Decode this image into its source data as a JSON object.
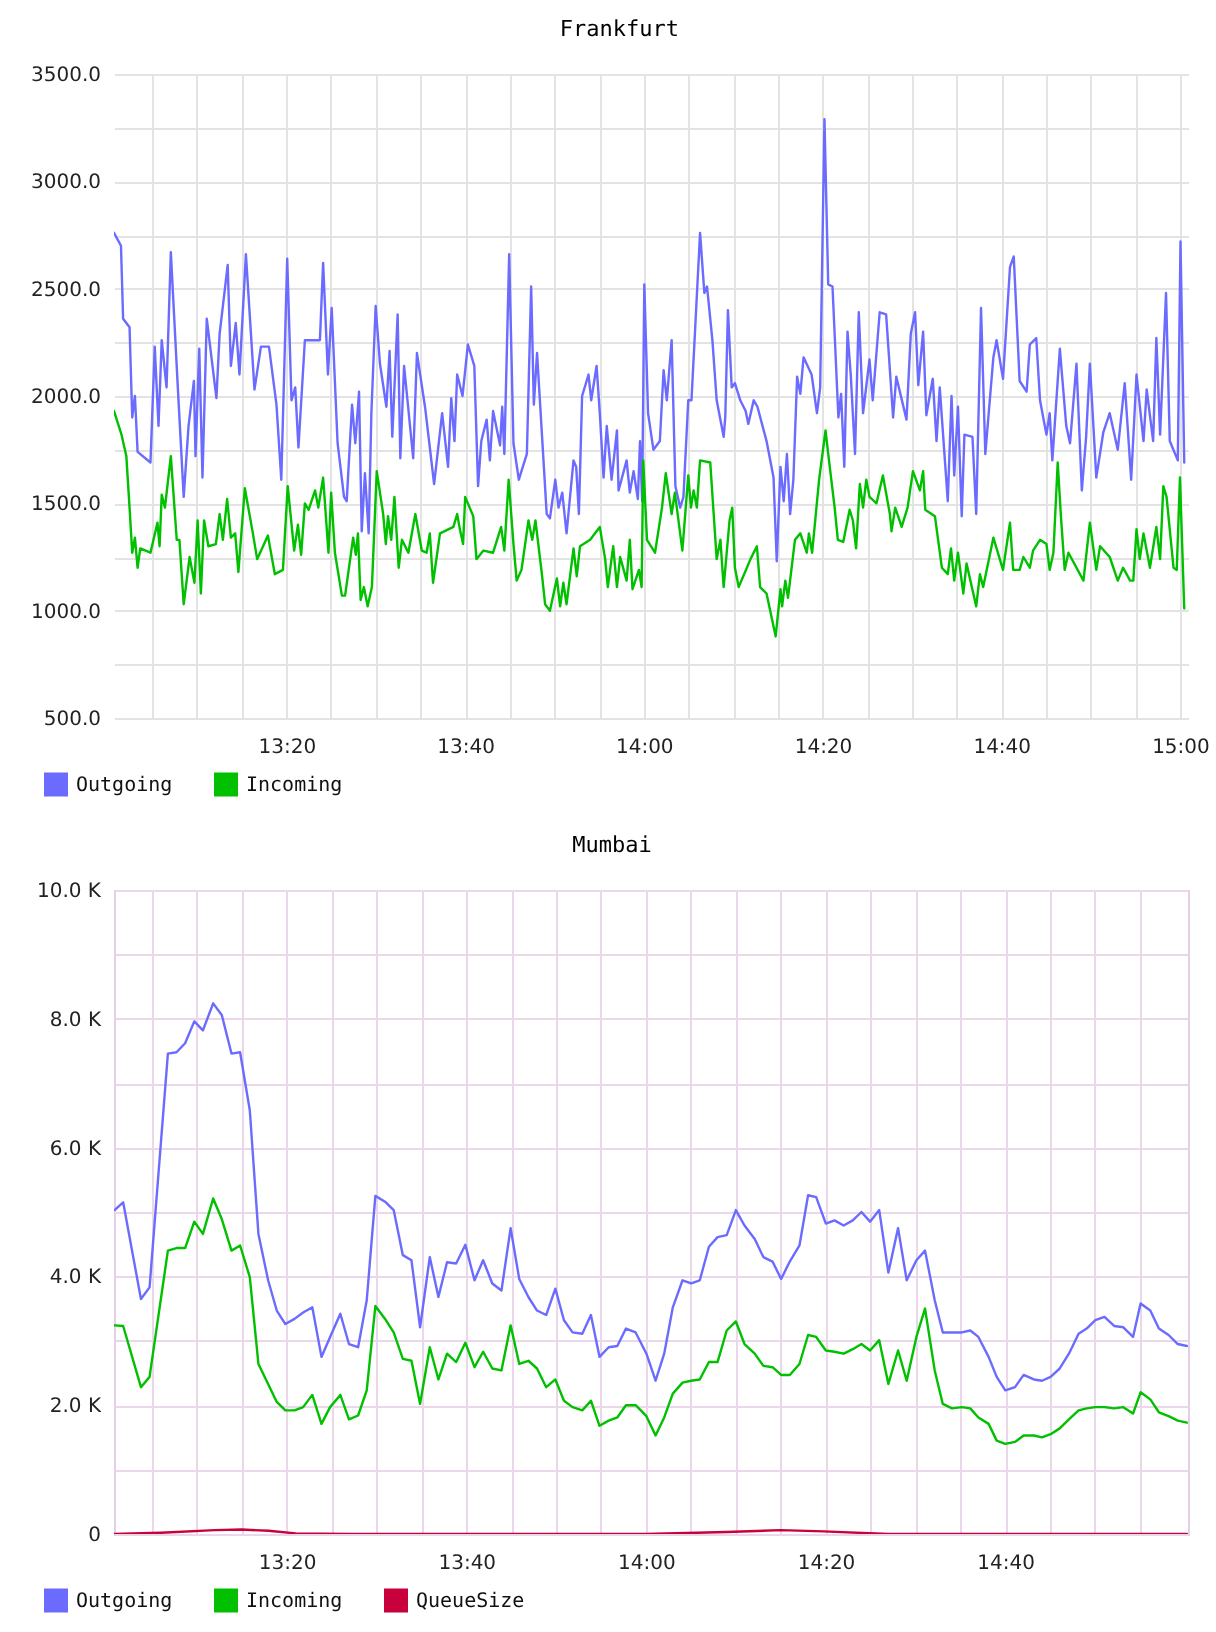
{
  "chart_data": [
    {
      "type": "line",
      "title": "Frankfurt",
      "series": [
        {
          "name": "Outgoing",
          "color": "#6b6bff",
          "x": [
            13.012,
            13.025,
            13.029,
            13.041,
            13.046,
            13.051,
            13.056,
            13.08,
            13.088,
            13.095,
            13.101,
            13.11,
            13.118,
            13.131,
            13.142,
            13.151,
            13.161,
            13.164,
            13.171,
            13.177,
            13.185,
            13.203,
            13.209,
            13.224,
            13.23,
            13.239,
            13.246,
            13.258,
            13.274,
            13.286,
            13.301,
            13.315,
            13.324,
            13.335,
            13.343,
            13.35,
            13.356,
            13.368,
            13.396,
            13.402,
            13.411,
            13.418,
            13.429,
            13.441,
            13.446,
            13.456,
            13.462,
            13.469,
            13.474,
            13.48,
            13.487,
            13.492,
            13.5,
            13.508,
            13.52,
            13.526,
            13.531,
            13.541,
            13.546,
            13.553,
            13.57,
            13.577,
            13.592,
            13.609,
            13.624,
            13.635,
            13.641,
            13.647,
            13.652,
            13.662,
            13.672,
            13.684,
            13.691,
            13.697,
            13.707,
            13.713,
            13.719,
            13.732,
            13.736,
            13.74,
            13.749,
            13.757,
            13.767,
            13.782,
            13.79,
            13.795,
            13.801,
            13.819,
            13.825,
            13.835,
            13.841,
            13.848,
            13.856,
            13.869,
            13.874,
            13.879,
            13.885,
            13.897,
            13.902,
            13.912,
            13.918,
            13.925,
            13.931,
            13.94,
            13.95,
            13.953,
            13.968,
            13.974,
            13.981,
            13.989,
            13.993,
            13.997,
            14.001,
            14.008,
            14.018,
            14.03,
            14.037,
            14.043,
            14.052,
            14.059,
            14.068,
            14.074,
            14.083,
            14.089,
            14.105,
            14.113,
            14.118,
            14.128,
            14.136,
            14.149,
            14.152,
            14.157,
            14.164,
            14.17,
            14.18,
            14.19,
            14.195,
            14.205,
            14.212,
            14.229,
            14.242,
            14.248,
            14.255,
            14.261,
            14.267,
            14.273,
            14.279,
            14.286,
            14.292,
            14.298,
            14.313,
            14.323,
            14.329,
            14.337,
            14.344,
            14.352,
            14.363,
            14.368,
            14.374,
            14.38,
            14.386,
            14.394,
            14.401,
            14.409,
            14.421,
            14.427,
            14.44,
            14.452,
            14.465,
            14.471,
            14.49,
            14.498,
            14.506,
            14.512,
            14.521,
            14.527,
            14.539,
            14.546,
            14.552,
            14.567,
            14.574,
            14.579,
            14.586,
            14.593,
            14.598,
            14.613,
            14.62,
            14.629,
            14.637,
            14.652,
            14.658,
            14.67,
            14.683,
            14.69,
            14.701,
            14.714,
            14.72,
            14.732,
            14.739,
            14.751,
            14.757,
            14.762,
            14.776,
            14.788,
            14.795,
            14.807,
            14.817,
            14.825,
            14.832,
            14.844,
            14.857,
            14.869,
            14.884,
            14.897,
            14.909,
            14.919,
            14.932,
            14.938,
            14.95,
            14.956,
            14.963,
            14.974,
            14.981,
            14.996,
            15.001,
            15.008
          ],
          "values": [
            2760,
            2700,
            2360,
            2320,
            1900,
            2000,
            1740,
            1690,
            2230,
            1860,
            2260,
            2040,
            2670,
            2040,
            1530,
            1860,
            2070,
            1720,
            2220,
            1620,
            2360,
            1990,
            2290,
            2610,
            2140,
            2340,
            2100,
            2660,
            2030,
            2230,
            2230,
            1960,
            1610,
            2640,
            1980,
            2040,
            1760,
            2260,
            2260,
            2620,
            2100,
            2410,
            1780,
            1530,
            1510,
            1960,
            1780,
            2020,
            1370,
            1640,
            1360,
            1920,
            2420,
            2150,
            1950,
            2210,
            1810,
            2380,
            1710,
            2140,
            1710,
            2200,
            1950,
            1590,
            1920,
            1670,
            1990,
            1790,
            2100,
            2000,
            2240,
            2140,
            1580,
            1790,
            1890,
            1700,
            1930,
            1770,
            1950,
            1730,
            2660,
            1780,
            1610,
            1730,
            2510,
            1960,
            2200,
            1450,
            1430,
            1610,
            1480,
            1550,
            1360,
            1700,
            1670,
            1450,
            2000,
            2100,
            1980,
            2140,
            1920,
            1620,
            1860,
            1610,
            1840,
            1560,
            1700,
            1550,
            1650,
            1520,
            1790,
            1510,
            2520,
            1920,
            1750,
            1790,
            2120,
            1980,
            2260,
            1580,
            1480,
            1530,
            1980,
            1980,
            2760,
            2480,
            2510,
            2260,
            1980,
            1810,
            1900,
            2400,
            2040,
            2060,
            1980,
            1930,
            1870,
            1980,
            1950,
            1790,
            1620,
            1230,
            1670,
            1510,
            1730,
            1450,
            1610,
            2090,
            2010,
            2180,
            2100,
            1920,
            2040,
            3290,
            2520,
            2510,
            1900,
            2010,
            1670,
            2300,
            2100,
            1730,
            2390,
            1920,
            2170,
            1980,
            2390,
            2380,
            1900,
            2090,
            1890,
            2290,
            2390,
            2050,
            2300,
            1910,
            2080,
            1790,
            2040,
            1510,
            2000,
            1630,
            1950,
            1440,
            1820,
            1810,
            1450,
            2410,
            1730,
            2180,
            2260,
            2080,
            2600,
            2650,
            2070,
            2020,
            2240,
            2270,
            1980,
            1820,
            1920,
            1700,
            2220,
            1860,
            1780,
            2150,
            1560,
            1810,
            2150,
            1620,
            1830,
            1920,
            1750,
            2060,
            1610,
            2100,
            1790,
            2030,
            1790,
            2270,
            1820,
            2480,
            1790,
            1700,
            2720,
            1690
          ]
        },
        {
          "name": "Incoming",
          "color": "#00c000",
          "x": [
            13.012,
            13.026,
            13.035,
            13.041,
            13.046,
            13.051,
            13.056,
            13.061,
            13.08,
            13.093,
            13.097,
            13.101,
            13.107,
            13.118,
            13.129,
            13.134,
            13.142,
            13.153,
            13.162,
            13.168,
            13.174,
            13.18,
            13.188,
            13.202,
            13.209,
            13.215,
            13.223,
            13.23,
            13.238,
            13.244,
            13.256,
            13.271,
            13.279,
            13.299,
            13.312,
            13.327,
            13.336,
            13.348,
            13.355,
            13.361,
            13.368,
            13.375,
            13.387,
            13.393,
            13.402,
            13.412,
            13.417,
            13.424,
            13.437,
            13.443,
            13.458,
            13.463,
            13.467,
            13.472,
            13.478,
            13.485,
            13.493,
            13.502,
            13.514,
            13.519,
            13.523,
            13.529,
            13.535,
            13.543,
            13.549,
            13.561,
            13.574,
            13.586,
            13.595,
            13.601,
            13.607,
            13.62,
            13.645,
            13.652,
            13.657,
            13.663,
            13.667,
            13.682,
            13.688,
            13.701,
            13.719,
            13.734,
            13.74,
            13.748,
            13.757,
            13.763,
            13.772,
            13.785,
            13.792,
            13.798,
            13.81,
            13.816,
            13.825,
            13.838,
            13.844,
            13.85,
            13.856,
            13.869,
            13.875,
            13.881,
            13.9,
            13.918,
            13.928,
            13.933,
            13.943,
            13.95,
            13.956,
            13.968,
            13.974,
            13.979,
            13.991,
            13.996,
            13.999,
            14.006,
            14.021,
            14.034,
            14.041,
            14.052,
            14.058,
            14.072,
            14.083,
            14.088,
            14.093,
            14.099,
            14.105,
            14.124,
            14.136,
            14.143,
            14.149,
            14.16,
            14.165,
            14.17,
            14.177,
            14.189,
            14.199,
            14.211,
            14.217,
            14.229,
            14.246,
            14.255,
            14.258,
            14.264,
            14.269,
            14.282,
            14.292,
            14.304,
            14.308,
            14.314,
            14.327,
            14.339,
            14.344,
            14.356,
            14.362,
            14.372,
            14.384,
            14.39,
            14.396,
            14.403,
            14.409,
            14.415,
            14.421,
            14.434,
            14.446,
            14.459,
            14.462,
            14.469,
            14.481,
            14.492,
            14.502,
            14.515,
            14.521,
            14.525,
            14.543,
            14.556,
            14.567,
            14.573,
            14.579,
            14.586,
            14.596,
            14.602,
            14.62,
            14.627,
            14.633,
            14.652,
            14.67,
            14.683,
            14.689,
            14.701,
            14.708,
            14.72,
            14.726,
            14.739,
            14.751,
            14.757,
            14.764,
            14.772,
            14.778,
            14.785,
            14.792,
            14.82,
            14.832,
            14.844,
            14.851,
            14.869,
            14.884,
            14.894,
            14.907,
            14.913,
            14.919,
            14.925,
            14.932,
            14.944,
            14.956,
            14.963,
            14.969,
            14.975,
            14.988,
            14.994,
            15.0,
            15.008
          ],
          "values": [
            1930,
            1820,
            1720,
            1480,
            1270,
            1340,
            1200,
            1290,
            1270,
            1410,
            1300,
            1540,
            1480,
            1720,
            1330,
            1330,
            1030,
            1250,
            1130,
            1420,
            1080,
            1420,
            1300,
            1310,
            1450,
            1330,
            1520,
            1340,
            1360,
            1180,
            1570,
            1360,
            1240,
            1350,
            1170,
            1190,
            1580,
            1280,
            1400,
            1260,
            1500,
            1470,
            1560,
            1480,
            1620,
            1270,
            1550,
            1270,
            1070,
            1070,
            1340,
            1260,
            1360,
            1050,
            1110,
            1020,
            1110,
            1650,
            1450,
            1310,
            1440,
            1330,
            1530,
            1200,
            1330,
            1270,
            1450,
            1280,
            1270,
            1360,
            1130,
            1360,
            1390,
            1450,
            1380,
            1310,
            1530,
            1440,
            1240,
            1280,
            1270,
            1390,
            1280,
            1610,
            1310,
            1140,
            1190,
            1420,
            1330,
            1420,
            1170,
            1030,
            1000,
            1150,
            1020,
            1130,
            1030,
            1290,
            1160,
            1300,
            1330,
            1390,
            1240,
            1110,
            1300,
            1110,
            1250,
            1140,
            1330,
            1100,
            1190,
            1110,
            1700,
            1330,
            1270,
            1480,
            1640,
            1450,
            1550,
            1280,
            1630,
            1480,
            1560,
            1480,
            1700,
            1690,
            1240,
            1330,
            1110,
            1420,
            1480,
            1200,
            1110,
            1180,
            1240,
            1300,
            1110,
            1080,
            880,
            1100,
            1020,
            1140,
            1060,
            1330,
            1360,
            1270,
            1360,
            1270,
            1610,
            1840,
            1730,
            1480,
            1330,
            1320,
            1470,
            1420,
            1290,
            1590,
            1480,
            1610,
            1530,
            1500,
            1630,
            1450,
            1370,
            1480,
            1390,
            1480,
            1650,
            1560,
            1650,
            1470,
            1440,
            1200,
            1170,
            1290,
            1140,
            1270,
            1080,
            1220,
            1020,
            1170,
            1110,
            1340,
            1190,
            1410,
            1190,
            1190,
            1250,
            1200,
            1280,
            1330,
            1310,
            1190,
            1270,
            1690,
            1440,
            1190,
            1270,
            1140,
            1410,
            1190,
            1300,
            1250,
            1140,
            1200,
            1140,
            1140,
            1380,
            1240,
            1360,
            1200,
            1390,
            1240,
            1580,
            1530,
            1200,
            1190,
            1620,
            1010
          ]
        }
      ],
      "xlim": [
        13.012,
        15.015
      ],
      "xticks": [
        {
          "value": 13.083333,
          "label": null
        },
        {
          "value": 13.166667,
          "label": null
        },
        {
          "value": 13.25,
          "label": null
        },
        {
          "value": 13.333333,
          "label": "13:20"
        },
        {
          "value": 13.416667,
          "label": null
        },
        {
          "value": 13.5,
          "label": null
        },
        {
          "value": 13.583333,
          "label": null
        },
        {
          "value": 13.666667,
          "label": "13:40"
        },
        {
          "value": 13.75,
          "label": null
        },
        {
          "value": 13.833333,
          "label": null
        },
        {
          "value": 13.916667,
          "label": null
        },
        {
          "value": 14,
          "label": "14:00"
        },
        {
          "value": 14.083333,
          "label": null
        },
        {
          "value": 14.166667,
          "label": null
        },
        {
          "value": 14.25,
          "label": null
        },
        {
          "value": 14.333333,
          "label": "14:20"
        },
        {
          "value": 14.416667,
          "label": null
        },
        {
          "value": 14.5,
          "label": null
        },
        {
          "value": 14.583333,
          "label": null
        },
        {
          "value": 14.666667,
          "label": "14:40"
        },
        {
          "value": 14.75,
          "label": null
        },
        {
          "value": 14.833333,
          "label": null
        },
        {
          "value": 14.916667,
          "label": null
        },
        {
          "value": 15,
          "label": "15:00"
        }
      ],
      "ylim": [
        500,
        3500
      ],
      "yticks": [
        {
          "value": 500,
          "label": "500.0"
        },
        {
          "value": 750,
          "label": null
        },
        {
          "value": 1000,
          "label": "1000.0"
        },
        {
          "value": 1250,
          "label": null
        },
        {
          "value": 1500,
          "label": "1500.0"
        },
        {
          "value": 1750,
          "label": null
        },
        {
          "value": 2000,
          "label": "2000.0"
        },
        {
          "value": 2250,
          "label": null
        },
        {
          "value": 2500,
          "label": "2500.0"
        },
        {
          "value": 2750,
          "label": null
        },
        {
          "value": 3000,
          "label": "3000.0"
        },
        {
          "value": 3250,
          "label": null
        },
        {
          "value": 3500,
          "label": "3500.0"
        }
      ],
      "grid": true,
      "legend": "bottom left"
    },
    {
      "type": "line",
      "title": "Mumbai",
      "x": [
        13.014,
        13.03,
        13.063,
        13.079,
        13.113,
        13.129,
        13.145,
        13.162,
        13.178,
        13.197,
        13.213,
        13.231,
        13.247,
        13.265,
        13.281,
        13.299,
        13.315,
        13.331,
        13.348,
        13.364,
        13.381,
        13.398,
        13.414,
        13.433,
        13.449,
        13.466,
        13.482,
        13.498,
        13.516,
        13.532,
        13.549,
        13.565,
        13.581,
        13.599,
        13.615,
        13.631,
        13.648,
        13.665,
        13.682,
        13.698,
        13.715,
        13.732,
        13.749,
        13.765,
        13.782,
        13.798,
        13.815,
        13.832,
        13.848,
        13.864,
        13.882,
        13.898,
        13.914,
        13.931,
        13.947,
        13.963,
        13.981,
        14.001,
        14.018,
        14.034,
        14.05,
        14.068,
        14.084,
        14.1,
        14.117,
        14.133,
        14.15,
        14.167,
        14.183,
        14.202,
        14.218,
        14.235,
        14.251,
        14.267,
        14.285,
        14.301,
        14.316,
        14.334,
        14.35,
        14.367,
        14.384,
        14.4,
        14.416,
        14.433,
        14.45,
        14.468,
        14.484,
        14.502,
        14.518,
        14.536,
        14.551,
        14.568,
        14.586,
        14.602,
        14.617,
        14.636,
        14.651,
        14.667,
        14.685,
        14.701,
        14.72,
        14.735,
        14.751,
        14.768,
        14.785,
        14.803,
        14.818,
        14.834,
        14.851,
        14.869,
        14.886,
        14.904,
        14.918,
        14.936,
        14.952,
        14.97,
        14.987,
        15.004
      ],
      "series": [
        {
          "name": "Outgoing",
          "color": "#6b6bff",
          "values": [
            5030,
            5150,
            3650,
            3830,
            7460,
            7480,
            7620,
            7960,
            7820,
            8240,
            8060,
            7460,
            7480,
            6580,
            4660,
            3940,
            3470,
            3260,
            3340,
            3440,
            3520,
            2750,
            3060,
            3420,
            2950,
            2900,
            3630,
            5250,
            5160,
            5030,
            4330,
            4250,
            3210,
            4300,
            3680,
            4220,
            4200,
            4490,
            3940,
            4250,
            3890,
            3780,
            4750,
            3960,
            3680,
            3470,
            3400,
            3810,
            3320,
            3130,
            3110,
            3400,
            2750,
            2900,
            2920,
            3190,
            3130,
            2800,
            2380,
            2800,
            3520,
            3940,
            3890,
            3940,
            4460,
            4610,
            4640,
            5030,
            4790,
            4580,
            4300,
            4230,
            3960,
            4230,
            4480,
            5260,
            5230,
            4820,
            4870,
            4790,
            4870,
            5000,
            4850,
            5030,
            4060,
            4750,
            3940,
            4250,
            4400,
            3630,
            3130,
            3130,
            3130,
            3160,
            3060,
            2750,
            2440,
            2230,
            2280,
            2470,
            2400,
            2380,
            2440,
            2570,
            2800,
            3110,
            3190,
            3320,
            3370,
            3230,
            3210,
            3060,
            3580,
            3470,
            3190,
            3090,
            2950,
            2920
          ]
        },
        {
          "name": "Incoming",
          "color": "#00c000",
          "values": [
            3240,
            3230,
            2280,
            2440,
            4400,
            4440,
            4440,
            4850,
            4660,
            5210,
            4890,
            4400,
            4480,
            3990,
            2640,
            2330,
            2050,
            1920,
            1920,
            1970,
            2160,
            1710,
            1970,
            2160,
            1780,
            1840,
            2230,
            3540,
            3340,
            3130,
            2720,
            2690,
            2020,
            2900,
            2400,
            2800,
            2670,
            2970,
            2590,
            2830,
            2570,
            2540,
            3240,
            2640,
            2690,
            2570,
            2280,
            2400,
            2070,
            1970,
            1920,
            2070,
            1680,
            1760,
            1810,
            2000,
            2000,
            1830,
            1530,
            1810,
            2180,
            2350,
            2380,
            2400,
            2670,
            2670,
            3160,
            3300,
            2950,
            2800,
            2610,
            2590,
            2470,
            2470,
            2640,
            3090,
            3060,
            2850,
            2830,
            2800,
            2870,
            2950,
            2850,
            3010,
            2330,
            2850,
            2380,
            3060,
            3500,
            2540,
            2020,
            1950,
            1970,
            1950,
            1810,
            1710,
            1450,
            1400,
            1430,
            1530,
            1530,
            1500,
            1550,
            1640,
            1780,
            1920,
            1950,
            1970,
            1970,
            1950,
            1970,
            1870,
            2200,
            2090,
            1890,
            1830,
            1760,
            1730
          ]
        },
        {
          "name": "QueueSize",
          "color": "#c8003c",
          "x": [
            13.014,
            13.1,
            13.2,
            13.25,
            13.3,
            13.35,
            13.45,
            14.0,
            14.15,
            14.25,
            14.33,
            14.45,
            15.004
          ],
          "values": [
            0,
            20,
            60,
            70,
            50,
            10,
            0,
            0,
            30,
            60,
            40,
            0,
            0
          ]
        }
      ],
      "xlim": [
        13.013,
        15.006
      ],
      "xticks": [
        {
          "value": 13.083333,
          "label": null
        },
        {
          "value": 13.166667,
          "label": null
        },
        {
          "value": 13.25,
          "label": null
        },
        {
          "value": 13.333333,
          "label": "13:20"
        },
        {
          "value": 13.416667,
          "label": null
        },
        {
          "value": 13.5,
          "label": null
        },
        {
          "value": 13.583333,
          "label": null
        },
        {
          "value": 13.666667,
          "label": "13:40"
        },
        {
          "value": 13.75,
          "label": null
        },
        {
          "value": 13.833333,
          "label": null
        },
        {
          "value": 13.916667,
          "label": null
        },
        {
          "value": 14,
          "label": "14:00"
        },
        {
          "value": 14.083333,
          "label": null
        },
        {
          "value": 14.166667,
          "label": null
        },
        {
          "value": 14.25,
          "label": null
        },
        {
          "value": 14.333333,
          "label": "14:20"
        },
        {
          "value": 14.416667,
          "label": null
        },
        {
          "value": 14.5,
          "label": null
        },
        {
          "value": 14.583333,
          "label": null
        },
        {
          "value": 14.666667,
          "label": "14:40"
        },
        {
          "value": 14.75,
          "label": null
        },
        {
          "value": 14.833333,
          "label": null
        },
        {
          "value": 14.916667,
          "label": null
        }
      ],
      "ylim": [
        0,
        10000
      ],
      "yticks": [
        {
          "value": 0,
          "label": "0"
        },
        {
          "value": 1000,
          "label": null
        },
        {
          "value": 2000,
          "label": "2.0 K"
        },
        {
          "value": 3000,
          "label": null
        },
        {
          "value": 4000,
          "label": "4.0 K"
        },
        {
          "value": 5000,
          "label": null
        },
        {
          "value": 6000,
          "label": "6.0 K"
        },
        {
          "value": 7000,
          "label": null
        },
        {
          "value": 8000,
          "label": "8.0 K"
        },
        {
          "value": 9000,
          "label": null
        },
        {
          "value": 10000,
          "label": "10.0 K"
        }
      ],
      "grid": true,
      "legend": "bottom left"
    }
  ]
}
